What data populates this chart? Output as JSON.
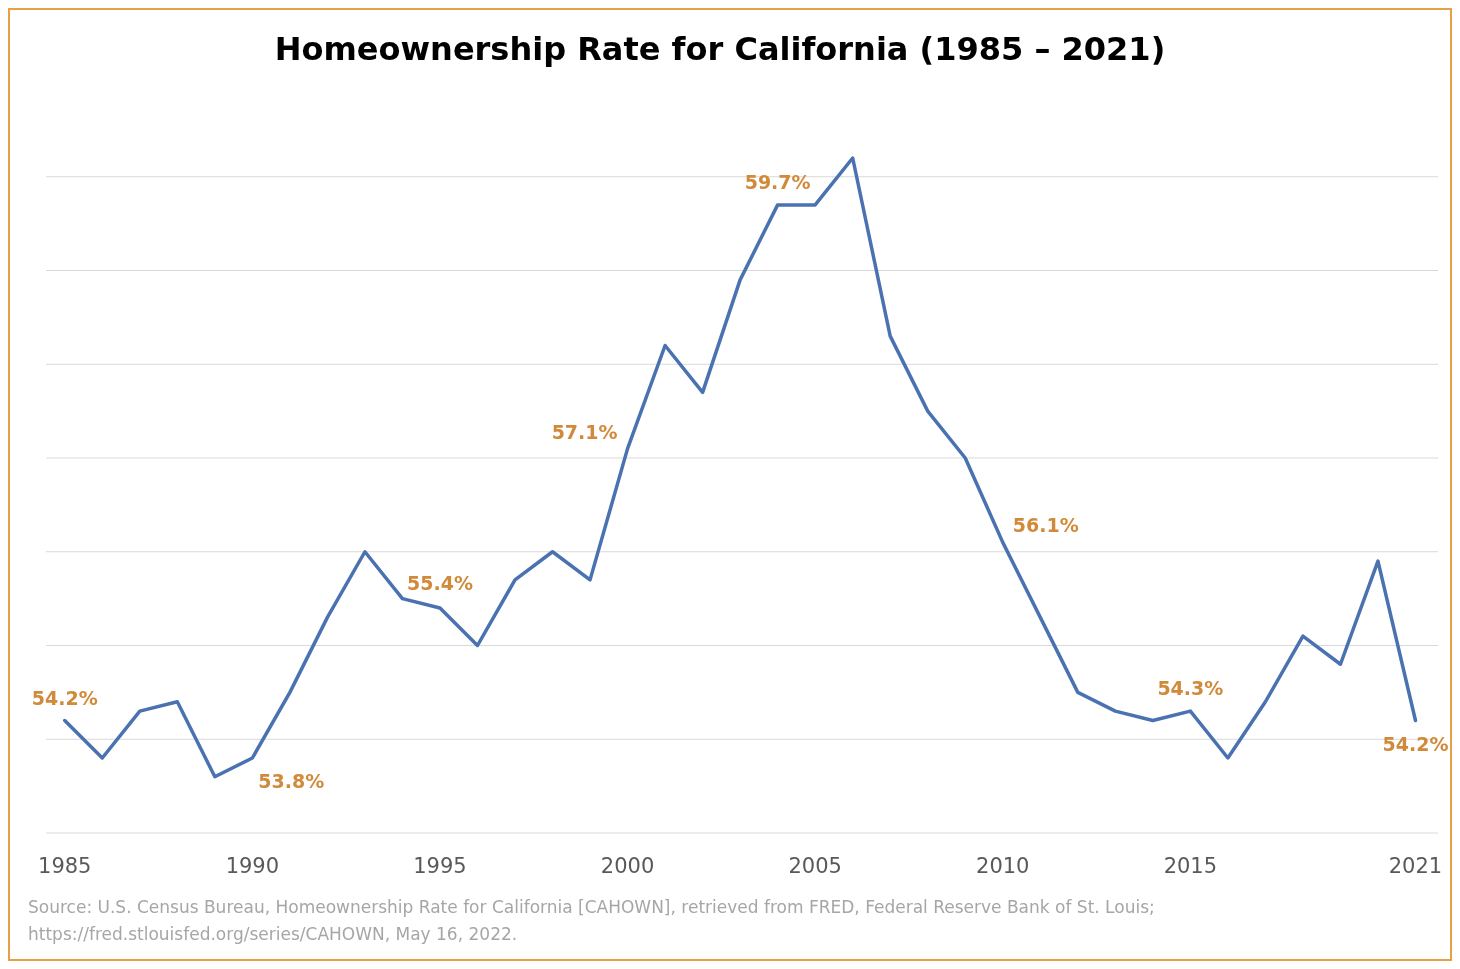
{
  "chart_data": {
    "type": "line",
    "title": "Homeownership Rate for California (1985 – 2021)",
    "x": [
      1985,
      1986,
      1987,
      1988,
      1989,
      1990,
      1991,
      1992,
      1993,
      1994,
      1995,
      1996,
      1997,
      1998,
      1999,
      2000,
      2001,
      2002,
      2003,
      2004,
      2005,
      2006,
      2007,
      2008,
      2009,
      2010,
      2011,
      2012,
      2013,
      2014,
      2015,
      2016,
      2017,
      2018,
      2019,
      2020,
      2021
    ],
    "series": [
      {
        "color": "#4a72b0",
        "values": [
          54.2,
          53.8,
          54.3,
          54.4,
          53.6,
          53.8,
          54.5,
          55.3,
          56.0,
          55.5,
          55.4,
          55.0,
          55.7,
          56.0,
          55.7,
          57.1,
          58.2,
          57.7,
          58.9,
          59.7,
          59.7,
          60.2,
          58.3,
          57.5,
          57.0,
          56.1,
          55.3,
          54.5,
          54.3,
          54.2,
          54.3,
          53.8,
          54.4,
          55.1,
          54.8,
          55.9,
          54.2
        ],
        "value_labels": [
          "54.2%",
          null,
          null,
          null,
          null,
          "53.8%",
          null,
          null,
          null,
          null,
          "55.4%",
          null,
          null,
          null,
          null,
          "57.1%",
          null,
          null,
          null,
          "59.7%",
          null,
          null,
          null,
          null,
          null,
          "56.1%",
          null,
          null,
          null,
          null,
          "54.3%",
          null,
          null,
          null,
          null,
          null,
          "54.2%"
        ]
      }
    ],
    "xlim": [
      1984.5,
      2021.6
    ],
    "xticks": [
      1985,
      1990,
      1995,
      2000,
      2005,
      2010,
      2015,
      2021
    ],
    "yticks": [
      {
        "value": 53,
        "label": null
      },
      {
        "value": 54,
        "label": null
      },
      {
        "value": 55,
        "label": null
      },
      {
        "value": 56,
        "label": null
      },
      {
        "value": 57,
        "label": null
      },
      {
        "value": 58,
        "label": null
      },
      {
        "value": 59,
        "label": null
      },
      {
        "value": 60,
        "label": null
      }
    ],
    "tick_labels": "x",
    "grid": "y",
    "marker": "none",
    "line_style": "solid",
    "annotations": [
      "Source: U.S. Census Bureau, Homeownership Rate for California [CAHOWN], retrieved from FRED,  Federal Reserve Bank of St. Louis;",
      "https://fred.stlouisfed.org/series/CAHOWN, May 16, 2022."
    ]
  }
}
